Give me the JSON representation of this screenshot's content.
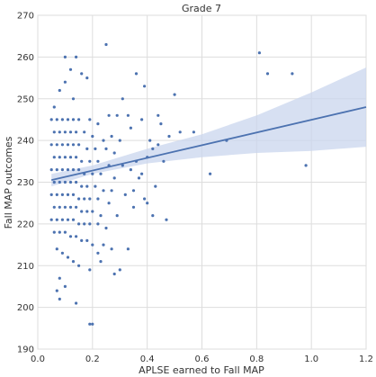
{
  "chart_data": {
    "type": "scatter",
    "title": "Grade 7",
    "xlabel": "APLSE earned to Fall MAP",
    "ylabel": "Fall MAP outcomes",
    "xlim": [
      0.0,
      1.2
    ],
    "ylim": [
      190,
      270
    ],
    "x_ticks": [
      "0.0",
      "0.2",
      "0.4",
      "0.6",
      "0.8",
      "1.0",
      "1.2"
    ],
    "y_ticks": [
      "190",
      "200",
      "210",
      "220",
      "230",
      "240",
      "250",
      "260",
      "270"
    ],
    "grid": true,
    "background": "#ffffff",
    "grid_color": "#dddddd",
    "point_color": "#4c72b0",
    "line_color": "#4c72b0",
    "band_color": "#c9d6ee",
    "regression": {
      "x": [
        0.05,
        1.2
      ],
      "y": [
        230.5,
        248.0
      ]
    },
    "confidence_band": {
      "x": [
        0.05,
        0.2,
        0.4,
        0.6,
        0.8,
        1.0,
        1.2
      ],
      "lower": [
        229.0,
        232.0,
        234.5,
        236.0,
        237.0,
        237.5,
        238.5
      ],
      "upper": [
        232.0,
        234.0,
        238.0,
        241.5,
        246.0,
        251.5,
        257.5
      ]
    },
    "points": [
      [
        0.1,
        260
      ],
      [
        0.14,
        260
      ],
      [
        0.16,
        256
      ],
      [
        0.25,
        263
      ],
      [
        0.12,
        257
      ],
      [
        0.08,
        252
      ],
      [
        0.1,
        254
      ],
      [
        0.13,
        250
      ],
      [
        0.18,
        255
      ],
      [
        0.06,
        248
      ],
      [
        0.05,
        245
      ],
      [
        0.07,
        245
      ],
      [
        0.09,
        245
      ],
      [
        0.11,
        245
      ],
      [
        0.13,
        245
      ],
      [
        0.15,
        245
      ],
      [
        0.19,
        245
      ],
      [
        0.22,
        244
      ],
      [
        0.26,
        246
      ],
      [
        0.29,
        246
      ],
      [
        0.06,
        242
      ],
      [
        0.08,
        242
      ],
      [
        0.1,
        242
      ],
      [
        0.12,
        242
      ],
      [
        0.14,
        242
      ],
      [
        0.17,
        242
      ],
      [
        0.2,
        241
      ],
      [
        0.24,
        240
      ],
      [
        0.27,
        241
      ],
      [
        0.3,
        240
      ],
      [
        0.05,
        239
      ],
      [
        0.07,
        239
      ],
      [
        0.09,
        239
      ],
      [
        0.11,
        239
      ],
      [
        0.13,
        239
      ],
      [
        0.15,
        239
      ],
      [
        0.18,
        238
      ],
      [
        0.21,
        238
      ],
      [
        0.25,
        238
      ],
      [
        0.28,
        237
      ],
      [
        0.06,
        236
      ],
      [
        0.08,
        236
      ],
      [
        0.1,
        236
      ],
      [
        0.12,
        236
      ],
      [
        0.14,
        236
      ],
      [
        0.16,
        235
      ],
      [
        0.19,
        235
      ],
      [
        0.22,
        235
      ],
      [
        0.26,
        234
      ],
      [
        0.31,
        234
      ],
      [
        0.05,
        233
      ],
      [
        0.07,
        233
      ],
      [
        0.09,
        233
      ],
      [
        0.11,
        233
      ],
      [
        0.13,
        233
      ],
      [
        0.15,
        233
      ],
      [
        0.17,
        232
      ],
      [
        0.2,
        232
      ],
      [
        0.23,
        232
      ],
      [
        0.28,
        231
      ],
      [
        0.06,
        230
      ],
      [
        0.08,
        230
      ],
      [
        0.1,
        230
      ],
      [
        0.12,
        230
      ],
      [
        0.14,
        230
      ],
      [
        0.16,
        229
      ],
      [
        0.18,
        229
      ],
      [
        0.21,
        229
      ],
      [
        0.24,
        228
      ],
      [
        0.27,
        228
      ],
      [
        0.05,
        227
      ],
      [
        0.07,
        227
      ],
      [
        0.09,
        227
      ],
      [
        0.11,
        227
      ],
      [
        0.13,
        227
      ],
      [
        0.15,
        226
      ],
      [
        0.17,
        226
      ],
      [
        0.19,
        226
      ],
      [
        0.22,
        226
      ],
      [
        0.26,
        225
      ],
      [
        0.06,
        224
      ],
      [
        0.08,
        224
      ],
      [
        0.1,
        224
      ],
      [
        0.12,
        224
      ],
      [
        0.14,
        224
      ],
      [
        0.16,
        223
      ],
      [
        0.18,
        223
      ],
      [
        0.2,
        223
      ],
      [
        0.23,
        222
      ],
      [
        0.29,
        222
      ],
      [
        0.05,
        221
      ],
      [
        0.07,
        221
      ],
      [
        0.09,
        221
      ],
      [
        0.11,
        221
      ],
      [
        0.13,
        221
      ],
      [
        0.15,
        220
      ],
      [
        0.17,
        220
      ],
      [
        0.19,
        220
      ],
      [
        0.22,
        220
      ],
      [
        0.25,
        219
      ],
      [
        0.06,
        218
      ],
      [
        0.08,
        218
      ],
      [
        0.1,
        218
      ],
      [
        0.12,
        217
      ],
      [
        0.14,
        217
      ],
      [
        0.16,
        216
      ],
      [
        0.18,
        216
      ],
      [
        0.2,
        215
      ],
      [
        0.24,
        215
      ],
      [
        0.27,
        214
      ],
      [
        0.07,
        214
      ],
      [
        0.09,
        213
      ],
      [
        0.11,
        212
      ],
      [
        0.13,
        211
      ],
      [
        0.15,
        210
      ],
      [
        0.19,
        209
      ],
      [
        0.23,
        211
      ],
      [
        0.28,
        208
      ],
      [
        0.08,
        207
      ],
      [
        0.1,
        205
      ],
      [
        0.07,
        204
      ],
      [
        0.08,
        202
      ],
      [
        0.14,
        201
      ],
      [
        0.19,
        196
      ],
      [
        0.2,
        196
      ],
      [
        0.3,
        209
      ],
      [
        0.22,
        213
      ],
      [
        0.33,
        214
      ],
      [
        0.34,
        233
      ],
      [
        0.36,
        235
      ],
      [
        0.38,
        232
      ],
      [
        0.4,
        236
      ],
      [
        0.42,
        238
      ],
      [
        0.37,
        231
      ],
      [
        0.41,
        240
      ],
      [
        0.44,
        239
      ],
      [
        0.46,
        235
      ],
      [
        0.43,
        229
      ],
      [
        0.35,
        228
      ],
      [
        0.39,
        226
      ],
      [
        0.45,
        244
      ],
      [
        0.48,
        241
      ],
      [
        0.52,
        242
      ],
      [
        0.4,
        225
      ],
      [
        0.35,
        224
      ],
      [
        0.42,
        222
      ],
      [
        0.47,
        221
      ],
      [
        0.38,
        245
      ],
      [
        0.33,
        246
      ],
      [
        0.5,
        251
      ],
      [
        0.57,
        242
      ],
      [
        0.63,
        232
      ],
      [
        0.69,
        240
      ],
      [
        0.81,
        261
      ],
      [
        0.84,
        256
      ],
      [
        0.93,
        256
      ],
      [
        0.98,
        234
      ],
      [
        0.31,
        250
      ],
      [
        0.36,
        256
      ],
      [
        0.34,
        243
      ],
      [
        0.44,
        246
      ],
      [
        0.39,
        253
      ],
      [
        0.32,
        227
      ]
    ]
  }
}
